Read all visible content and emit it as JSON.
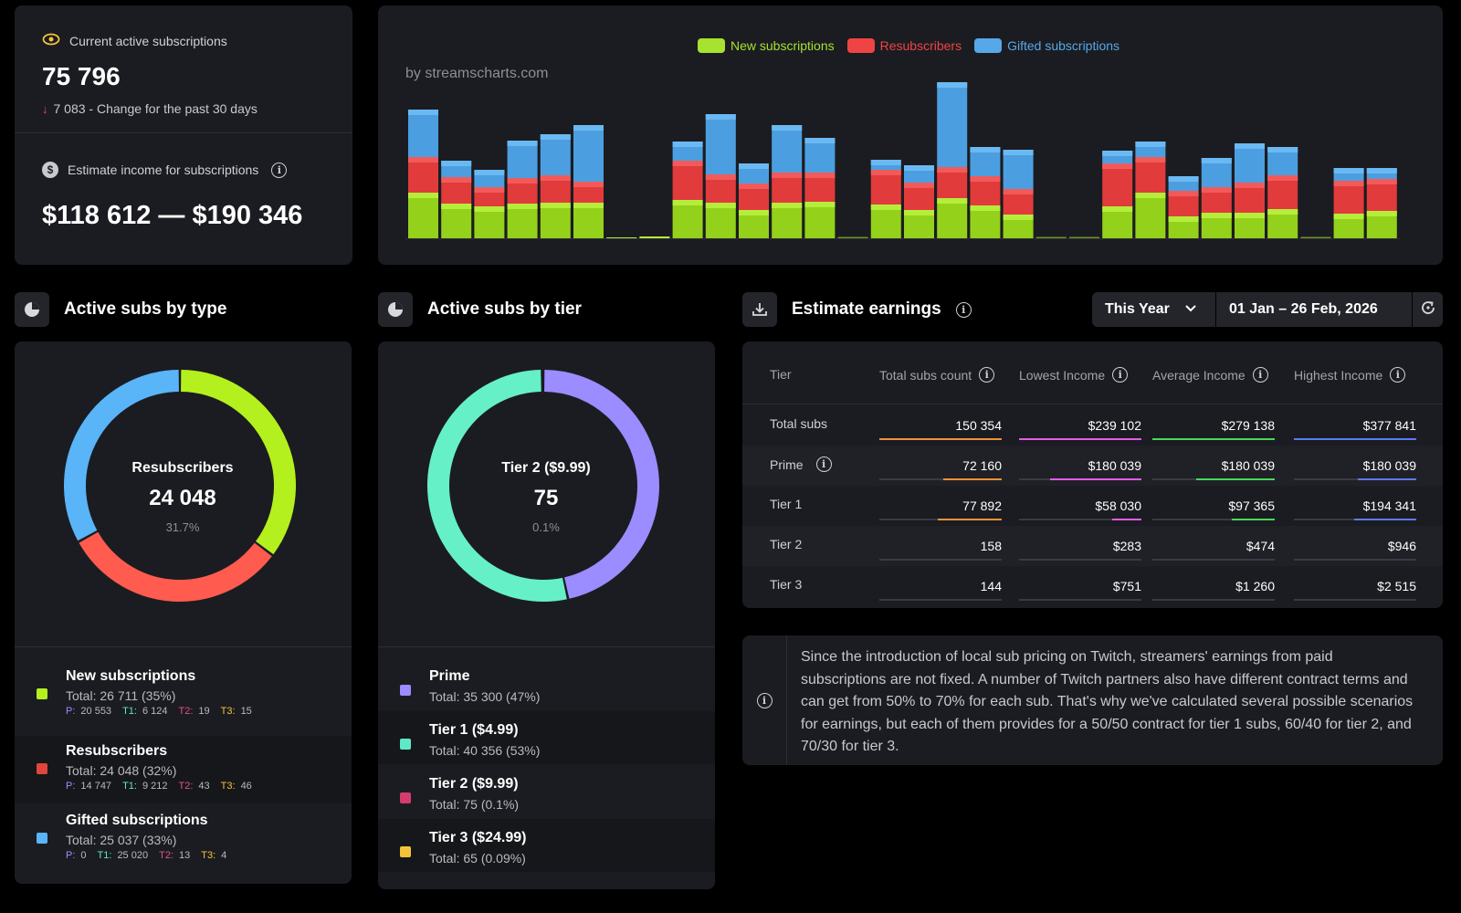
{
  "kpi": {
    "active_label": "Current active subscriptions",
    "active_value": "75 796",
    "change_text": "7 083 - Change for the past 30 days",
    "income_label": "Estimate income for subscriptions",
    "income_value": "$118 612 — $190 346"
  },
  "chart": {
    "watermark": "by streamscharts.com",
    "legend": [
      {
        "name": "New subscriptions",
        "color": "#a6e22e"
      },
      {
        "name": "Resubscribers",
        "color": "#ef4444"
      },
      {
        "name": "Gifted subscriptions",
        "color": "#56a8e8"
      }
    ]
  },
  "chart_data": {
    "type": "bar",
    "stacked": true,
    "series": [
      {
        "name": "New subscriptions",
        "values": [
          50,
          38,
          35,
          38,
          39,
          39,
          1,
          2,
          42,
          39,
          31,
          39,
          40,
          0,
          37,
          31,
          44,
          36,
          26,
          0,
          0,
          35,
          50,
          24,
          28,
          28,
          32,
          0,
          27,
          30
        ]
      },
      {
        "name": "Resubscribers",
        "values": [
          39,
          29,
          21,
          28,
          30,
          23,
          0,
          0,
          43,
          31,
          29,
          33,
          32,
          0,
          38,
          30,
          34,
          32,
          28,
          0,
          0,
          47,
          39,
          28,
          28,
          33,
          37,
          0,
          36,
          35
        ]
      },
      {
        "name": "Gifted subscriptions",
        "values": [
          52,
          18,
          19,
          41,
          45,
          62,
          0,
          0,
          21,
          66,
          22,
          52,
          38,
          0,
          11,
          19,
          93,
          32,
          43,
          0,
          0,
          14,
          17,
          16,
          32,
          43,
          31,
          0,
          14,
          12
        ]
      }
    ],
    "ylim": [
      0,
      180
    ]
  },
  "by_type": {
    "title": "Active subs by type",
    "center": {
      "label": "Resubscribers",
      "value": "24 048",
      "pct": "31.7%"
    },
    "segments": [
      {
        "name": "New subscriptions",
        "value": 26711,
        "color": "#b4f01e"
      },
      {
        "name": "Resubscribers",
        "value": 24048,
        "color": "#ff5b4f"
      },
      {
        "name": "Gifted subscriptions",
        "value": 25037,
        "color": "#5ab4f8"
      }
    ],
    "rows": [
      {
        "title": "New subscriptions",
        "color": "#b4f01e",
        "total": "Total: 26 711 (35%)",
        "p_key": "P:",
        "p": "20 553",
        "t1_key": "T1:",
        "t1": "6 124",
        "t2_key": "T2:",
        "t2": "19",
        "t3_key": "T3:",
        "t3": "15"
      },
      {
        "title": "Resubscribers",
        "color": "#e0463c",
        "total": "Total: 24 048 (32%)",
        "p_key": "P:",
        "p": "14 747",
        "t1_key": "T1:",
        "t1": "9 212",
        "t2_key": "T2:",
        "t2": "43",
        "t3_key": "T3:",
        "t3": "46"
      },
      {
        "title": "Gifted subscriptions",
        "color": "#5ab4f8",
        "total": "Total: 25 037 (33%)",
        "p_key": "P:",
        "p": "0",
        "t1_key": "T1:",
        "t1": "25 020",
        "t2_key": "T2:",
        "t2": "13",
        "t3_key": "T3:",
        "t3": "4"
      }
    ]
  },
  "by_tier": {
    "title": "Active subs by tier",
    "center": {
      "label": "Tier 2 ($9.99)",
      "value": "75",
      "pct": "0.1%"
    },
    "segments": [
      {
        "name": "Prime",
        "value": 35300,
        "color": "#9b8cff"
      },
      {
        "name": "Tier 1 ($4.99)",
        "value": 40356,
        "color": "#66f0c8"
      },
      {
        "name": "Tier 2 ($9.99)",
        "value": 75,
        "color": "#e2508c"
      },
      {
        "name": "Tier 3 ($24.99)",
        "value": 65,
        "color": "#f5c33b"
      }
    ],
    "rows": [
      {
        "title": "Prime",
        "color": "#9b8cff",
        "total": "Total: 35 300 (47%)"
      },
      {
        "title": "Tier 1 ($4.99)",
        "color": "#5ee8c8",
        "total": "Total: 40 356 (53%)"
      },
      {
        "title": "Tier 2 ($9.99)",
        "color": "#d43c6e",
        "total": "Total: 75 (0.1%)"
      },
      {
        "title": "Tier 3 ($24.99)",
        "color": "#f5c33b",
        "total": "Total: 65 (0.09%)"
      }
    ]
  },
  "earnings": {
    "title": "Estimate earnings",
    "period": "This Year",
    "date_range": "01 Jan – 26 Feb, 2026",
    "headers": [
      "Tier",
      "Total subs count",
      "Lowest Income",
      "Average Income",
      "Highest Income"
    ],
    "column_colors": [
      "#f0913a",
      "#e25ce8",
      "#48d85a",
      "#5b7cf0"
    ],
    "rows": [
      {
        "tier": "Total subs",
        "cells": [
          "150 354",
          "$239 102",
          "$279 138",
          "$377 841"
        ],
        "fills": [
          1,
          1,
          1,
          1
        ]
      },
      {
        "tier": "Prime",
        "cells": [
          "72 160",
          "$180 039",
          "$180 039",
          "$180 039"
        ],
        "fills": [
          0.48,
          0.75,
          0.64,
          0.48
        ]
      },
      {
        "tier": "Tier 1",
        "cells": [
          "77 892",
          "$58 030",
          "$97 365",
          "$194 341"
        ],
        "fills": [
          0.52,
          0.24,
          0.35,
          0.51
        ]
      },
      {
        "tier": "Tier 2",
        "cells": [
          "158",
          "$283",
          "$474",
          "$946"
        ],
        "fills": [
          0,
          0,
          0,
          0
        ]
      },
      {
        "tier": "Tier 3",
        "cells": [
          "144",
          "$751",
          "$1 260",
          "$2 515"
        ],
        "fills": [
          0,
          0,
          0,
          0
        ]
      }
    ],
    "note": "Since the introduction of local sub pricing on Twitch, streamers' earnings from paid subscriptions are not fixed. A number of Twitch partners also have different contract terms and can get from 50% to 70% for each sub. That's why we've calculated several possible scenarios for earnings, but each of them provides for a 50/50 contract for tier 1 subs, 60/40 for tier 2, and 70/30 for tier 3."
  }
}
